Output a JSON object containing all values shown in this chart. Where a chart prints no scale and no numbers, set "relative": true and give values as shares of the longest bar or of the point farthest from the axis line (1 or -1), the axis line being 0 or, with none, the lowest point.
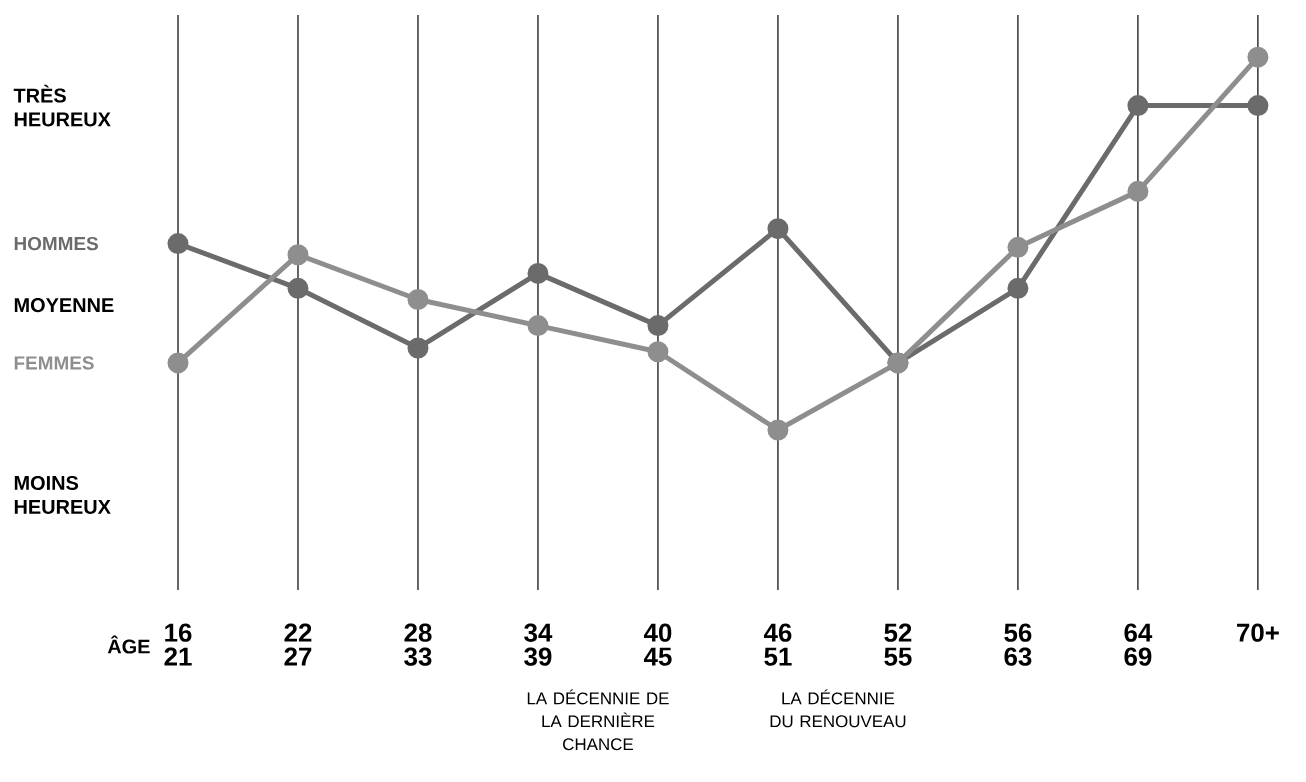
{
  "chart_data": {
    "type": "line",
    "relative": true,
    "grid": "x",
    "marker": "circle",
    "xlabel": "ÂGE",
    "categories": [
      "16 21",
      "22 27",
      "28 33",
      "34 39",
      "40 45",
      "46 51",
      "52 55",
      "56 63",
      "64 69",
      "70+"
    ],
    "series": [
      {
        "name": "HOMMES",
        "color": "#6b6b6b",
        "values": [
          0.5,
          0.38,
          0.22,
          0.42,
          0.28,
          0.54,
          0.18,
          0.38,
          0.87,
          0.87
        ]
      },
      {
        "name": "FEMMES",
        "color": "#8e8e8e",
        "values": [
          0.18,
          0.47,
          0.35,
          0.28,
          0.21,
          0.0,
          0.18,
          0.49,
          0.64,
          1.0
        ]
      }
    ],
    "annotations": [
      "TRÈS HEUREUX",
      "MOYENNE",
      "MOINS HEUREUX",
      "LA DÉCENNIE DE LA DERNIÈRE CHANCE",
      "LA DÉCENNIE DU RENOUVEAU"
    ]
  }
}
